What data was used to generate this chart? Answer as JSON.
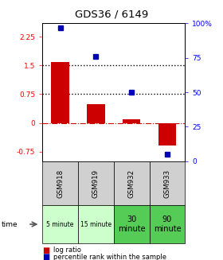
{
  "title": "GDS36 / 6149",
  "samples": [
    "GSM918",
    "GSM919",
    "GSM932",
    "GSM933"
  ],
  "time_labels": [
    "5 minute",
    "15 minute",
    "30\nminute",
    "90\nminute"
  ],
  "time_colors": [
    "#ccffcc",
    "#ccffcc",
    "#55cc55",
    "#55cc55"
  ],
  "log_ratios": [
    1.6,
    0.5,
    0.1,
    -0.58
  ],
  "percentile_ranks": [
    97,
    76,
    50,
    5
  ],
  "ylim_left": [
    -1.0,
    2.6
  ],
  "yticks_left": [
    -0.75,
    0,
    0.75,
    1.5,
    2.25
  ],
  "yticks_right": [
    0,
    25,
    50,
    75,
    100
  ],
  "bar_color": "#cc0000",
  "dot_color": "#0000bb",
  "hline_y": [
    0.75,
    1.5
  ],
  "bar_width": 0.5,
  "bg_color": "#ffffff"
}
